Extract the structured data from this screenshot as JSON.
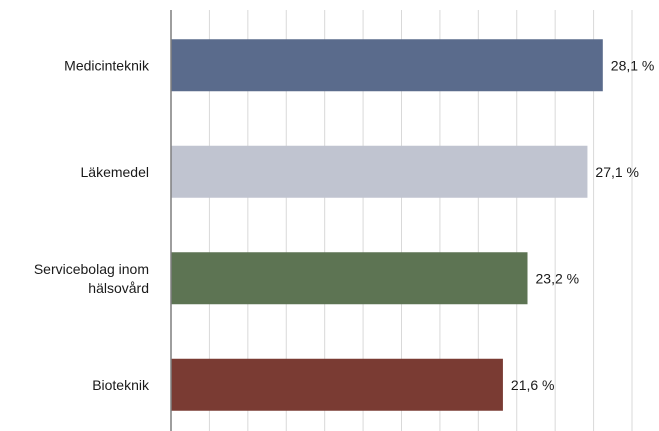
{
  "chart_data": {
    "type": "bar",
    "orientation": "horizontal",
    "categories": [
      [
        "Medicinteknik"
      ],
      [
        "Läkemedel"
      ],
      [
        "Servicebolag inom",
        "hälsovård"
      ],
      [
        "Bioteknik"
      ]
    ],
    "values": [
      28.1,
      27.1,
      23.2,
      21.6
    ],
    "value_labels": [
      "28,1 %",
      "27,1 %",
      "23,2 %",
      "21,6 %"
    ],
    "colors": [
      "#5a6b8c",
      "#c0c4d0",
      "#5d7453",
      "#7a3b33"
    ],
    "xlim": [
      0,
      30
    ],
    "x_grid_step": 2.5,
    "grid": true,
    "axis_color": "#7f7f7f",
    "grid_color": "#d9d9d9",
    "title": "",
    "xlabel": "",
    "ylabel": ""
  }
}
